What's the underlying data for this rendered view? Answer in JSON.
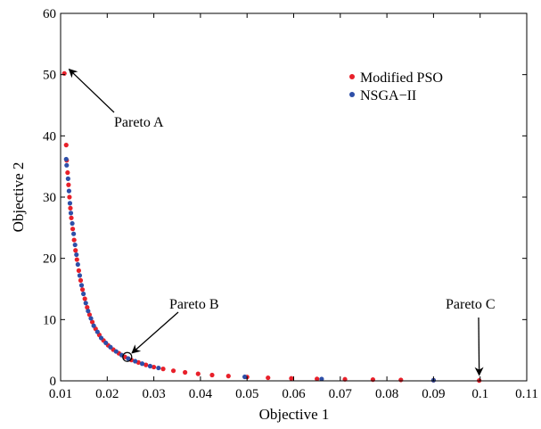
{
  "chart_data": {
    "type": "scatter",
    "xlabel": "Objective 1",
    "ylabel": "Objective 2",
    "xlim": [
      0.01,
      0.11
    ],
    "ylim": [
      0,
      60
    ],
    "xticks": [
      "0.01",
      "0.02",
      "0.03",
      "0.04",
      "0.05",
      "0.06",
      "0.07",
      "0.08",
      "0.09",
      "0.1",
      "0.11"
    ],
    "yticks": [
      "0",
      "10",
      "20",
      "30",
      "40",
      "50",
      "60"
    ],
    "legend_position": "top-right",
    "series": [
      {
        "name": "Modified PSO",
        "color": "#e8202a",
        "points": [
          [
            0.0108,
            50.2
          ],
          [
            0.0112,
            38.5
          ],
          [
            0.0113,
            36.0
          ],
          [
            0.0115,
            34.0
          ],
          [
            0.0117,
            32.0
          ],
          [
            0.0119,
            30.0
          ],
          [
            0.0121,
            28.2
          ],
          [
            0.0123,
            26.6
          ],
          [
            0.0126,
            24.8
          ],
          [
            0.0129,
            23.0
          ],
          [
            0.0132,
            21.3
          ],
          [
            0.0135,
            19.8
          ],
          [
            0.0139,
            18.0
          ],
          [
            0.0143,
            16.4
          ],
          [
            0.0147,
            14.9
          ],
          [
            0.0152,
            13.4
          ],
          [
            0.0157,
            12.0
          ],
          [
            0.0162,
            10.8
          ],
          [
            0.0168,
            9.6
          ],
          [
            0.0175,
            8.5
          ],
          [
            0.0183,
            7.5
          ],
          [
            0.0192,
            6.6
          ],
          [
            0.0202,
            5.8
          ],
          [
            0.0213,
            5.1
          ],
          [
            0.0225,
            4.5
          ],
          [
            0.0238,
            3.9
          ],
          [
            0.0252,
            3.4
          ],
          [
            0.0267,
            3.0
          ],
          [
            0.0283,
            2.6
          ],
          [
            0.03,
            2.25
          ],
          [
            0.032,
            1.95
          ],
          [
            0.0342,
            1.65
          ],
          [
            0.0367,
            1.38
          ],
          [
            0.0395,
            1.15
          ],
          [
            0.0425,
            0.95
          ],
          [
            0.046,
            0.78
          ],
          [
            0.05,
            0.63
          ],
          [
            0.0545,
            0.5
          ],
          [
            0.0595,
            0.4
          ],
          [
            0.065,
            0.32
          ],
          [
            0.071,
            0.25
          ],
          [
            0.077,
            0.2
          ],
          [
            0.083,
            0.15
          ],
          [
            0.09,
            0.1
          ],
          [
            0.0998,
            0.05
          ]
        ]
      },
      {
        "name": "NSGA−II",
        "color": "#2e4fa8",
        "points": [
          [
            0.0112,
            36.2
          ],
          [
            0.0113,
            35.2
          ],
          [
            0.0116,
            33.0
          ],
          [
            0.0118,
            31.0
          ],
          [
            0.012,
            29.0
          ],
          [
            0.0122,
            27.4
          ],
          [
            0.0125,
            25.7
          ],
          [
            0.0128,
            24.0
          ],
          [
            0.0131,
            22.2
          ],
          [
            0.0134,
            20.6
          ],
          [
            0.0137,
            19.0
          ],
          [
            0.0141,
            17.2
          ],
          [
            0.0145,
            15.6
          ],
          [
            0.0149,
            14.2
          ],
          [
            0.0154,
            12.7
          ],
          [
            0.0159,
            11.4
          ],
          [
            0.0165,
            10.2
          ],
          [
            0.0171,
            9.0
          ],
          [
            0.0179,
            8.0
          ],
          [
            0.0187,
            7.0
          ],
          [
            0.0197,
            6.2
          ],
          [
            0.0207,
            5.5
          ],
          [
            0.0219,
            4.8
          ],
          [
            0.0231,
            4.2
          ],
          [
            0.0245,
            3.65
          ],
          [
            0.026,
            3.2
          ],
          [
            0.0275,
            2.8
          ],
          [
            0.0292,
            2.4
          ],
          [
            0.031,
            2.1
          ],
          [
            0.0495,
            0.65
          ],
          [
            0.066,
            0.3
          ],
          [
            0.09,
            0.1
          ]
        ]
      }
    ],
    "annotations": [
      {
        "text": "Pareto A",
        "target": [
          0.0108,
          50.2
        ]
      },
      {
        "text": "Pareto B",
        "target": [
          0.0243,
          3.9
        ]
      },
      {
        "text": "Pareto C",
        "target": [
          0.0998,
          0.05
        ]
      }
    ]
  }
}
